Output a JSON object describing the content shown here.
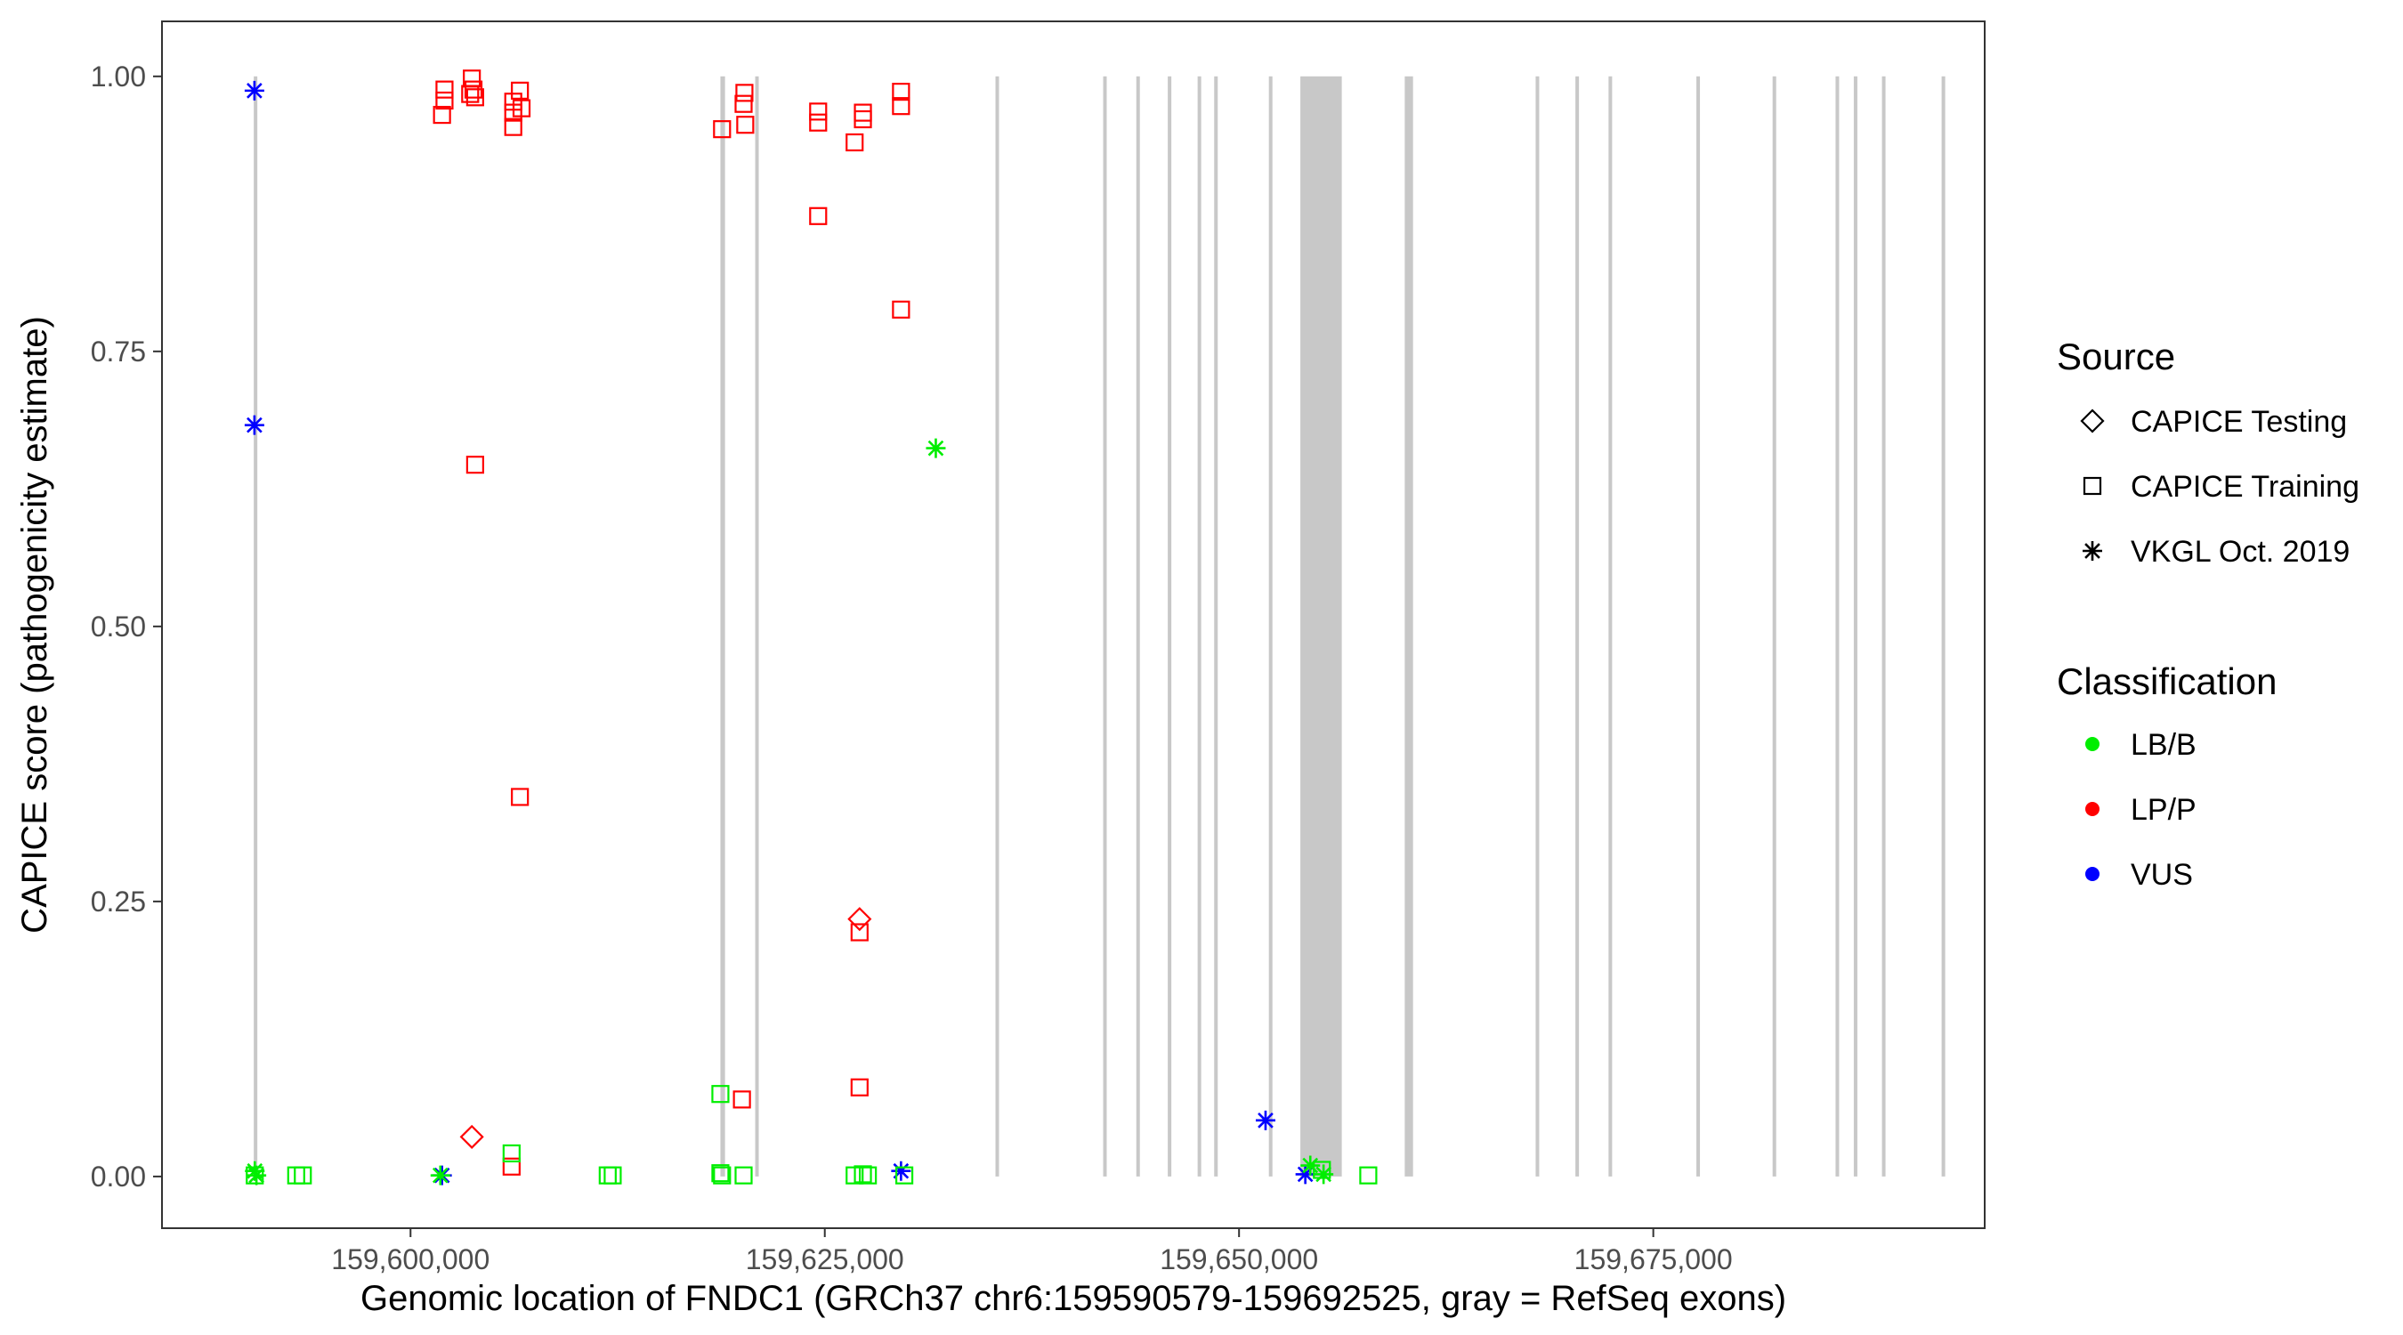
{
  "chart_data": {
    "type": "scatter",
    "title": "",
    "xlabel": "Genomic location of FNDC1 (GRCh37 chr6:159590579-159692525, gray = RefSeq exons)",
    "ylabel": "CAPICE score (pathogenicity estimate)",
    "xlim": [
      159585000,
      159695000
    ],
    "ylim": [
      -0.047,
      1.05
    ],
    "x_ticks": [
      159600000,
      159625000,
      159650000,
      159675000
    ],
    "x_tick_labels": [
      "159,600,000",
      "159,625,000",
      "159,650,000",
      "159,675,000"
    ],
    "y_ticks": [
      0,
      0.25,
      0.5,
      0.75,
      1
    ],
    "y_tick_labels": [
      "0.00",
      "0.25",
      "0.50",
      "0.75",
      "1.00"
    ],
    "grid": false,
    "background_color": "#ffffff",
    "exon_color": "#c8c8c8",
    "exons": [
      [
        159590540,
        159590620
      ],
      [
        159618700,
        159618980
      ],
      [
        159620800,
        159620900
      ],
      [
        159635300,
        159635400
      ],
      [
        159641800,
        159641900
      ],
      [
        159643800,
        159643900
      ],
      [
        159645700,
        159645800
      ],
      [
        159647500,
        159647600
      ],
      [
        159648500,
        159648600
      ],
      [
        159651800,
        159651900
      ],
      [
        159653700,
        159656200
      ],
      [
        159660000,
        159660500
      ],
      [
        159667900,
        159668000
      ],
      [
        159670300,
        159670400
      ],
      [
        159672300,
        159672500
      ],
      [
        159677600,
        159677700
      ],
      [
        159682200,
        159682300
      ],
      [
        159686000,
        159686100
      ],
      [
        159687100,
        159687300
      ],
      [
        159688800,
        159688900
      ],
      [
        159692400,
        159692500
      ]
    ],
    "legend": {
      "placement": "right",
      "source_title": "Source",
      "source_items": [
        {
          "label": "CAPICE Testing",
          "shape": "diamond"
        },
        {
          "label": "CAPICE Training",
          "shape": "square"
        },
        {
          "label": "VKGL Oct. 2019",
          "shape": "star"
        }
      ],
      "class_title": "Classification",
      "class_items": [
        {
          "label": "LB/B",
          "color": "#00ee00"
        },
        {
          "label": "LP/P",
          "color": "#ff0000"
        },
        {
          "label": "VUS",
          "color": "#0000ff"
        }
      ]
    },
    "series": [
      {
        "source": "CAPICE Training",
        "classification": "LP/P",
        "shape": "square",
        "color": "#ff0000",
        "points": [
          [
            159602050,
            0.988
          ],
          [
            159602050,
            0.978
          ],
          [
            159601900,
            0.965
          ],
          [
            159603700,
            0.998
          ],
          [
            159603800,
            0.988
          ],
          [
            159603600,
            0.984
          ],
          [
            159603900,
            0.981
          ],
          [
            159606600,
            0.987
          ],
          [
            159606200,
            0.977
          ],
          [
            159606200,
            0.967
          ],
          [
            159606700,
            0.971
          ],
          [
            159606200,
            0.954
          ],
          [
            159606600,
            0.345
          ],
          [
            159603900,
            0.647
          ],
          [
            159606100,
            0.009
          ],
          [
            159620150,
            0.985
          ],
          [
            159620100,
            0.975
          ],
          [
            159620200,
            0.956
          ],
          [
            159618800,
            0.952
          ],
          [
            159620000,
            0.07
          ],
          [
            159624600,
            0.968
          ],
          [
            159624600,
            0.958
          ],
          [
            159624600,
            0.873
          ],
          [
            159627300,
            0.967
          ],
          [
            159627300,
            0.961
          ],
          [
            159626800,
            0.94
          ],
          [
            159629600,
            0.986
          ],
          [
            159629600,
            0.973
          ],
          [
            159629600,
            0.788
          ],
          [
            159627100,
            0.222
          ],
          [
            159627100,
            0.081
          ]
        ]
      },
      {
        "source": "CAPICE Testing",
        "classification": "LP/P",
        "shape": "diamond",
        "color": "#ff0000",
        "points": [
          [
            159627100,
            0.234
          ],
          [
            159603700,
            0.036
          ]
        ]
      },
      {
        "source": "VKGL Oct. 2019",
        "classification": "VUS",
        "shape": "star",
        "color": "#0000ff",
        "points": [
          [
            159590580,
            0.987
          ],
          [
            159590580,
            0.683
          ],
          [
            159601900,
            0.001
          ],
          [
            159629600,
            0.005
          ],
          [
            159651600,
            0.051
          ],
          [
            159654000,
            0.002
          ]
        ]
      },
      {
        "source": "VKGL Oct. 2019",
        "classification": "LB/B",
        "shape": "star",
        "color": "#00ee00",
        "points": [
          [
            159590600,
            0.005
          ],
          [
            159590700,
            0.001
          ],
          [
            159631700,
            0.662
          ],
          [
            159654300,
            0.01
          ],
          [
            159655100,
            0.002
          ],
          [
            159601800,
            0.001
          ]
        ]
      },
      {
        "source": "CAPICE Training",
        "classification": "LB/B",
        "shape": "square",
        "color": "#00ee00",
        "points": [
          [
            159590600,
            0.001
          ],
          [
            159593100,
            0.001
          ],
          [
            159593500,
            0.001
          ],
          [
            159606100,
            0.021
          ],
          [
            159611900,
            0.001
          ],
          [
            159612200,
            0.001
          ],
          [
            159618700,
            0.075
          ],
          [
            159618700,
            0.003
          ],
          [
            159618800,
            0.001
          ],
          [
            159620100,
            0.001
          ],
          [
            159626800,
            0.001
          ],
          [
            159627300,
            0.002
          ],
          [
            159627600,
            0.001
          ],
          [
            159629800,
            0.001
          ],
          [
            159655000,
            0.006
          ],
          [
            159657800,
            0.001
          ]
        ]
      }
    ]
  }
}
